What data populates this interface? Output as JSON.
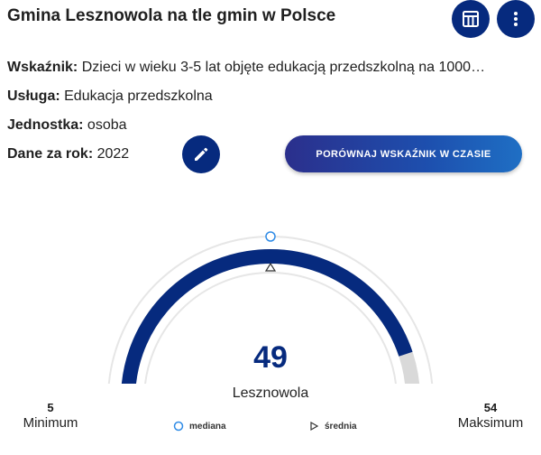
{
  "header": {
    "title": "Gmina Lesznowola na tle gmin w Polsce",
    "table_icon": "table-icon",
    "menu_icon": "more-vert-icon"
  },
  "info": {
    "indicator_label": "Wskaźnik:",
    "indicator_value": "Dzieci w wieku 3-5 lat objęte edukacją przedszkolną na 1000…",
    "service_label": "Usługa:",
    "service_value": "Edukacja przedszkolna",
    "unit_label": "Jednostka:",
    "unit_value": "osoba",
    "year_label": "Dane za rok:",
    "year_value": "2022"
  },
  "actions": {
    "edit_icon": "pencil-icon",
    "compare_label": "PORÓWNAJ WSKAŹNIK W CZASIE"
  },
  "gauge": {
    "value": 49,
    "value_text": "49",
    "unit_name": "Lesznowola",
    "min": 5,
    "min_text": "5",
    "min_label": "Minimum",
    "max": 54,
    "max_text": "54",
    "max_label": "Maksimum",
    "median_fraction": 0.5,
    "mean_fraction": 0.5
  },
  "legend": {
    "median_label": "mediana",
    "mean_label": "średnia"
  },
  "colors": {
    "primary": "#062a7e",
    "track": "#d9d9d9",
    "median_marker": "#2f8be6"
  }
}
